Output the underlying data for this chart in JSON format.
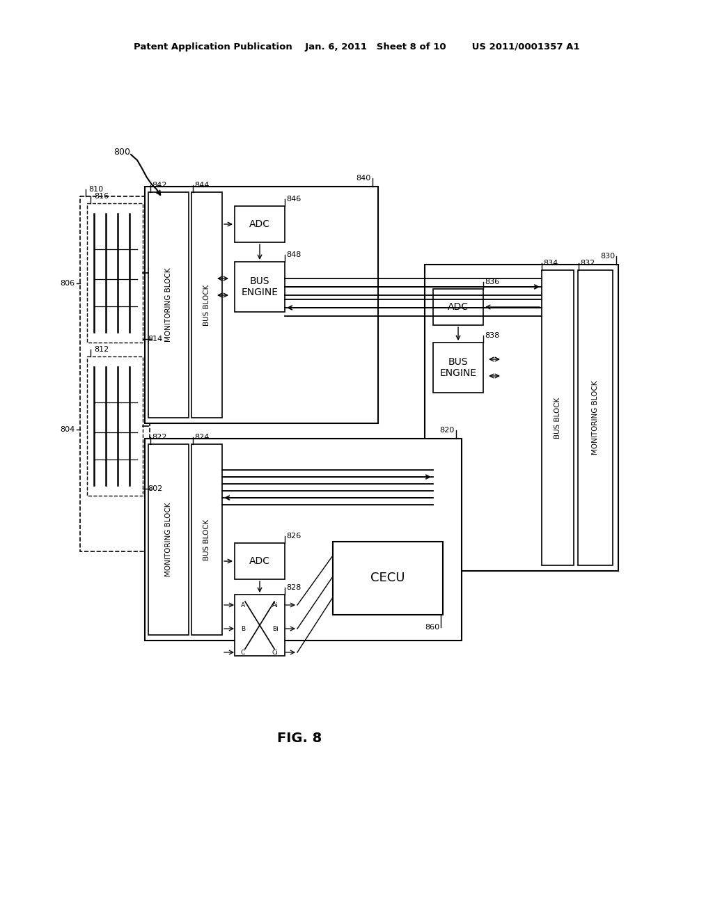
{
  "bg_color": "#ffffff",
  "header_text": "Patent Application Publication    Jan. 6, 2011   Sheet 8 of 10        US 2011/0001357 A1",
  "fig_label": "FIG. 8",
  "label_800": "800",
  "label_810": "810",
  "label_816": "816",
  "label_806": "806",
  "label_814": "814",
  "label_842": "842",
  "label_844": "844",
  "label_840": "840",
  "label_846": "846",
  "label_848": "848",
  "label_820": "820",
  "label_822": "822",
  "label_824": "824",
  "label_826": "826",
  "label_828": "828",
  "label_804": "804",
  "label_812": "812",
  "label_802": "802",
  "label_830": "830",
  "label_832": "832",
  "label_834": "834",
  "label_836": "836",
  "label_838": "838",
  "label_860": "860",
  "text_adc": "ADC",
  "text_be": "BUS\nENGINE",
  "text_mb": "MONITORING BLOCK",
  "text_bb": "BUS BLOCK",
  "text_cecu": "CECU"
}
